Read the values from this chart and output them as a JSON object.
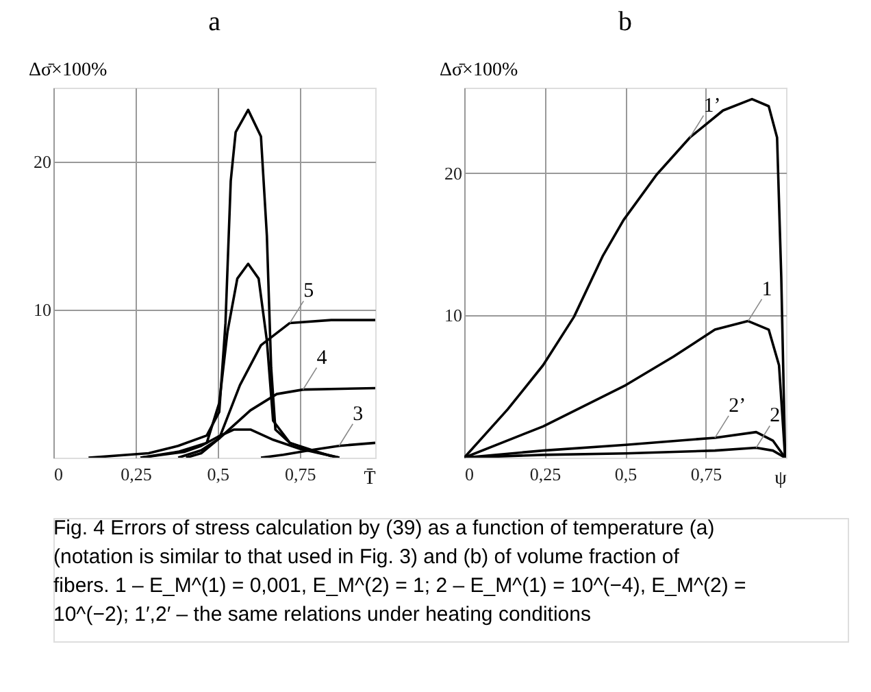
{
  "chart_data": [
    {
      "type": "line",
      "title": "a",
      "xlabel": "T̄",
      "ylabel": "Δσ̄×100%",
      "grid": true,
      "xlim": [
        0,
        0.98
      ],
      "ylim": [
        0,
        25
      ],
      "xticks": [
        0,
        {
          "value": 0.25,
          "label": "0,25"
        },
        {
          "value": 0.5,
          "label": "0,5"
        },
        {
          "value": 0.75,
          "label": "0,75"
        }
      ],
      "yticks": [
        10,
        20
      ],
      "series": [
        {
          "color": "#000000",
          "x": [
            0.107,
            0.29,
            0.38,
            0.467,
            0.505,
            0.524,
            0.54,
            0.555,
            0.593,
            0.632,
            0.65,
            0.663,
            0.676,
            0.72,
            0.795,
            0.871
          ],
          "values": [
            0,
            0.3,
            0.8,
            1.5,
            3.1,
            9.1,
            18.7,
            22,
            23.5,
            21.7,
            15,
            6.1,
            1.9,
            1,
            0.4,
            0
          ]
        },
        {
          "color": "#000000",
          "x": [
            0.265,
            0.38,
            0.467,
            0.505,
            0.53,
            0.56,
            0.593,
            0.625,
            0.65,
            0.669,
            0.72,
            0.846
          ],
          "values": [
            0,
            0.4,
            1,
            3.7,
            8.5,
            12.1,
            13.1,
            12.1,
            7.9,
            2.5,
            1,
            0.1
          ]
        },
        {
          "name": "5",
          "color": "#000000",
          "x": [
            0.404,
            0.45,
            0.505,
            0.568,
            0.632,
            0.72,
            0.846,
            0.98
          ],
          "values": [
            0,
            0.3,
            1.3,
            4.9,
            7.6,
            9.1,
            9.3,
            9.3
          ]
        },
        {
          "name": "4",
          "color": "#000000",
          "x": [
            0.38,
            0.45,
            0.505,
            0.6,
            0.68,
            0.76,
            0.98
          ],
          "values": [
            0,
            0.5,
            1.3,
            3.2,
            4.3,
            4.6,
            4.7
          ]
        },
        {
          "color": "#000000",
          "x": [
            0.265,
            0.4,
            0.45,
            0.5,
            0.55,
            0.6,
            0.67,
            0.75,
            0.87
          ],
          "values": [
            0,
            0.4,
            0.8,
            1.4,
            1.9,
            1.9,
            1.2,
            0.6,
            0
          ]
        },
        {
          "name": "3",
          "color": "#000000",
          "x": [
            0.632,
            0.7,
            0.78,
            0.87,
            0.98
          ],
          "values": [
            0,
            0.2,
            0.5,
            0.8,
            1.0
          ]
        }
      ],
      "annotations": [
        "Fig. 4 Errors of stress calculation by (39) as a function of temperature (a) (notation is similar to that used in Fig. 3) and (b) of volume fraction of fibers. 1 – E_M^(1) = 0,001, E_M^(2) = 1; 2 – E_M^(1) = 10^(−4), E_M^(2) = 10^(−2); 1′,2′ – the same relations under heating conditions"
      ]
    },
    {
      "type": "line",
      "title": "b",
      "xlabel": "ψ",
      "ylabel": "Δσ̄×100%",
      "grid": true,
      "xlim": [
        0,
        1
      ],
      "ylim": [
        0,
        26
      ],
      "xticks": [
        0,
        {
          "value": 0.25,
          "label": "0,25"
        },
        {
          "value": 0.5,
          "label": "0,5"
        },
        {
          "value": 0.75,
          "label": "0,75"
        }
      ],
      "yticks": [
        10,
        20
      ],
      "series": [
        {
          "name": "1’",
          "color": "#000000",
          "x": [
            0,
            0.135,
            0.245,
            0.341,
            0.431,
            0.495,
            0.598,
            0.701,
            0.804,
            0.894,
            0.946,
            0.972,
            0.985,
            0.997
          ],
          "values": [
            0,
            3.4,
            6.5,
            9.9,
            14.2,
            16.7,
            19.9,
            22.5,
            24.4,
            25.2,
            24.7,
            22.5,
            12.7,
            0
          ]
        },
        {
          "name": "1",
          "color": "#000000",
          "x": [
            0,
            0.245,
            0.502,
            0.65,
            0.779,
            0.882,
            0.946,
            0.978,
            0.997
          ],
          "values": [
            0,
            2.2,
            5.1,
            7.1,
            9,
            9.6,
            9,
            6.5,
            0
          ]
        },
        {
          "color": "#000000",
          "x": [
            0,
            0.245,
            0.502,
            0.779,
            0.907,
            0.959,
            0.997
          ],
          "values": [
            0,
            0.5,
            0.9,
            1.4,
            1.8,
            1.2,
            0
          ],
          "name": "2’"
        },
        {
          "color": "#000000",
          "x": [
            0,
            0.245,
            0.502,
            0.779,
            0.907,
            0.959,
            0.997
          ],
          "values": [
            0,
            0.2,
            0.3,
            0.5,
            0.7,
            0.5,
            0
          ],
          "name": "2"
        }
      ]
    }
  ]
}
